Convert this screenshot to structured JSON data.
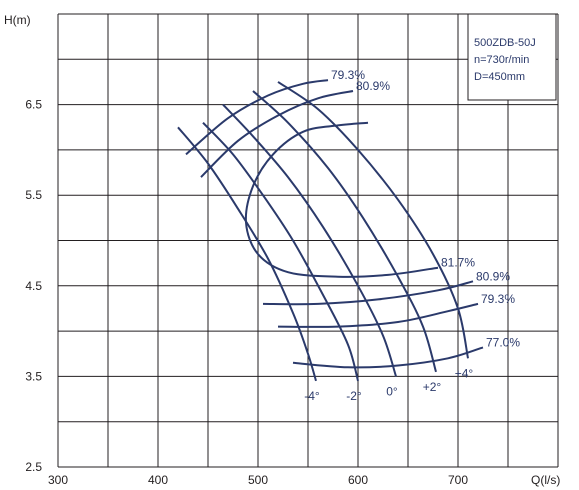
{
  "chart_data": {
    "type": "line",
    "title": "",
    "xlabel": "Q(l/s)",
    "ylabel": "H(m)",
    "xlim": [
      300,
      800
    ],
    "ylim": [
      2.5,
      7.5
    ],
    "x_ticks": [
      "300",
      "400",
      "500",
      "600",
      "700"
    ],
    "y_ticks": [
      "2.5",
      "3.5",
      "4.5",
      "5.5",
      "6.5"
    ],
    "grid": true,
    "info_box": [
      "500ZDB-50J",
      "n=730r/min",
      "D=450mm"
    ],
    "head_curves": [
      {
        "label": "-4°",
        "points": [
          [
            420,
            6.25
          ],
          [
            450,
            5.85
          ],
          [
            480,
            5.35
          ],
          [
            510,
            4.8
          ],
          [
            535,
            4.2
          ],
          [
            550,
            3.75
          ],
          [
            558,
            3.45
          ]
        ]
      },
      {
        "label": "-2°",
        "points": [
          [
            445,
            6.3
          ],
          [
            475,
            5.95
          ],
          [
            505,
            5.5
          ],
          [
            535,
            5.0
          ],
          [
            565,
            4.4
          ],
          [
            590,
            3.85
          ],
          [
            600,
            3.45
          ]
        ]
      },
      {
        "label": "0°",
        "points": [
          [
            465,
            6.5
          ],
          [
            495,
            6.15
          ],
          [
            530,
            5.7
          ],
          [
            565,
            5.15
          ],
          [
            600,
            4.5
          ],
          [
            625,
            3.95
          ],
          [
            638,
            3.5
          ]
        ]
      },
      {
        "label": "+2°",
        "points": [
          [
            495,
            6.65
          ],
          [
            530,
            6.3
          ],
          [
            570,
            5.8
          ],
          [
            605,
            5.25
          ],
          [
            640,
            4.6
          ],
          [
            665,
            4.05
          ],
          [
            678,
            3.55
          ]
        ]
      },
      {
        "label": "+4°",
        "points": [
          [
            520,
            6.75
          ],
          [
            560,
            6.45
          ],
          [
            600,
            6.0
          ],
          [
            640,
            5.45
          ],
          [
            675,
            4.85
          ],
          [
            700,
            4.25
          ],
          [
            710,
            3.7
          ]
        ]
      }
    ],
    "efficiency_curves": [
      {
        "label": "79.3%",
        "points": [
          [
            428,
            5.95
          ],
          [
            470,
            6.35
          ],
          [
            510,
            6.6
          ],
          [
            545,
            6.73
          ],
          [
            570,
            6.77
          ]
        ]
      },
      {
        "label": "80.9%",
        "points": [
          [
            443,
            5.7
          ],
          [
            480,
            6.1
          ],
          [
            520,
            6.38
          ],
          [
            560,
            6.57
          ],
          [
            595,
            6.65
          ]
        ]
      },
      {
        "label": "81.7%",
        "points": [
          [
            610,
            6.3
          ],
          [
            580,
            6.27
          ],
          [
            545,
            6.2
          ],
          [
            515,
            5.95
          ],
          [
            495,
            5.6
          ],
          [
            488,
            5.2
          ],
          [
            500,
            4.85
          ],
          [
            530,
            4.65
          ],
          [
            580,
            4.6
          ],
          [
            630,
            4.62
          ],
          [
            680,
            4.7
          ]
        ]
      },
      {
        "label": "80.9%",
        "points": [
          [
            505,
            4.3
          ],
          [
            560,
            4.3
          ],
          [
            620,
            4.35
          ],
          [
            680,
            4.45
          ],
          [
            715,
            4.55
          ]
        ]
      },
      {
        "label": "79.3%",
        "points": [
          [
            520,
            4.05
          ],
          [
            580,
            4.05
          ],
          [
            640,
            4.1
          ],
          [
            690,
            4.22
          ],
          [
            720,
            4.3
          ]
        ]
      },
      {
        "label": "77.0%",
        "points": [
          [
            535,
            3.65
          ],
          [
            590,
            3.6
          ],
          [
            640,
            3.62
          ],
          [
            690,
            3.7
          ],
          [
            725,
            3.82
          ]
        ]
      }
    ]
  }
}
